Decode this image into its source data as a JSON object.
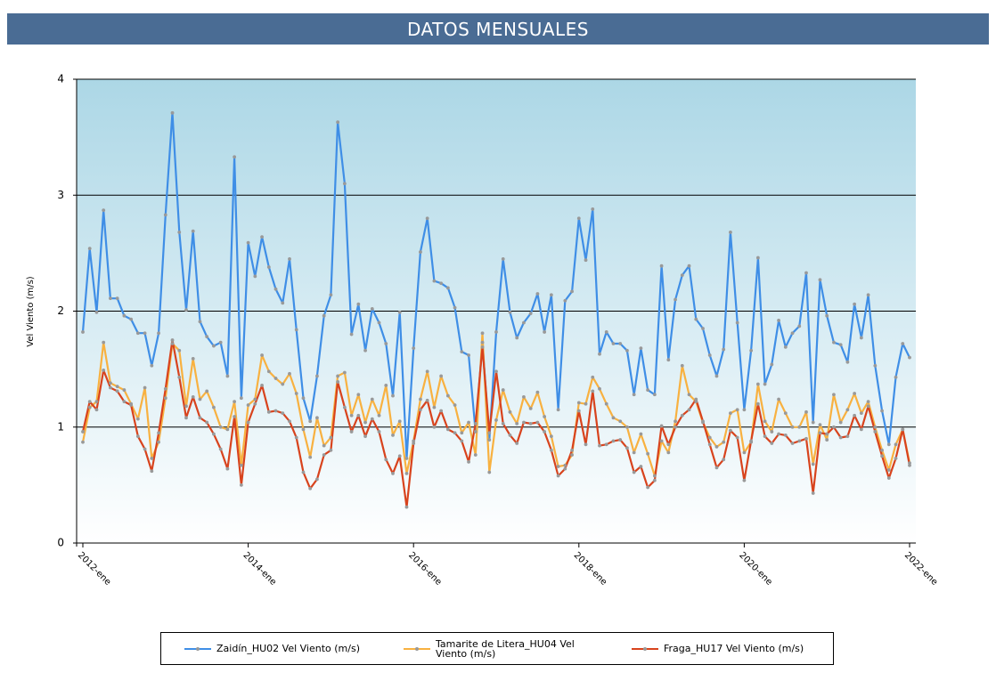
{
  "chart_data": {
    "type": "line",
    "title": "DATOS MENSUALES",
    "y_label": "Vel Viento (m/s)",
    "categories": [
      "2012-ene",
      null,
      null,
      null,
      null,
      null,
      null,
      null,
      null,
      null,
      null,
      null,
      null,
      null,
      null,
      null,
      null,
      null,
      null,
      null,
      null,
      null,
      null,
      null,
      "2014-ene",
      null,
      null,
      null,
      null,
      null,
      null,
      null,
      null,
      null,
      null,
      null,
      null,
      null,
      null,
      null,
      null,
      null,
      null,
      null,
      null,
      null,
      null,
      null,
      "2016-ene",
      null,
      null,
      null,
      null,
      null,
      null,
      null,
      null,
      null,
      null,
      null,
      null,
      null,
      null,
      null,
      null,
      null,
      null,
      null,
      null,
      null,
      null,
      null,
      "2018-ene",
      null,
      null,
      null,
      null,
      null,
      null,
      null,
      null,
      null,
      null,
      null,
      null,
      null,
      null,
      null,
      null,
      null,
      null,
      null,
      null,
      null,
      null,
      null,
      "2020-ene",
      null,
      null,
      null,
      null,
      null,
      null,
      null,
      null,
      null,
      null,
      null,
      null,
      null,
      null,
      null,
      null,
      null,
      null,
      null,
      null,
      null,
      null,
      null,
      "2022-ene"
    ],
    "series": [
      {
        "name": "Zaidín_HU02 Vel Viento (m/s)",
        "color": "#3f8ee6",
        "values": [
          1.82,
          2.54,
          1.99,
          2.87,
          2.11,
          2.11,
          1.96,
          1.93,
          1.81,
          1.81,
          1.53,
          1.81,
          2.83,
          3.71,
          2.68,
          2.01,
          2.69,
          1.91,
          1.78,
          1.7,
          1.73,
          1.44,
          3.33,
          1.25,
          2.59,
          2.3,
          2.64,
          2.38,
          2.19,
          2.07,
          2.45,
          1.84,
          1.25,
          1.05,
          1.44,
          1.96,
          2.14,
          3.63,
          3.1,
          1.8,
          2.06,
          1.66,
          2.02,
          1.9,
          1.72,
          1.27,
          1.99,
          0.73,
          1.68,
          2.51,
          2.8,
          2.26,
          2.24,
          2.2,
          2.03,
          1.65,
          1.62,
          0.96,
          1.73,
          0.89,
          1.82,
          2.45,
          1.99,
          1.77,
          1.9,
          1.98,
          2.15,
          1.82,
          2.14,
          1.15,
          2.09,
          2.17,
          2.8,
          2.44,
          2.88,
          1.63,
          1.82,
          1.72,
          1.72,
          1.66,
          1.28,
          1.68,
          1.32,
          1.28,
          2.39,
          1.58,
          2.1,
          2.31,
          2.39,
          1.93,
          1.85,
          1.62,
          1.44,
          1.67,
          2.68,
          1.9,
          1.15,
          1.66,
          2.46,
          1.37,
          1.54,
          1.92,
          1.69,
          1.81,
          1.87,
          2.33,
          1.04,
          2.27,
          1.96,
          1.73,
          1.71,
          1.56,
          2.06,
          1.77,
          2.14,
          1.53,
          1.14,
          0.85,
          1.43,
          1.72,
          1.6
        ]
      },
      {
        "name": "Tamarite de Litera_HU04 Vel Viento (m/s)",
        "color": "#f8b140",
        "values": [
          0.87,
          1.17,
          1.22,
          1.73,
          1.38,
          1.35,
          1.32,
          1.2,
          1.07,
          1.34,
          0.73,
          0.87,
          1.25,
          1.72,
          1.66,
          1.18,
          1.59,
          1.24,
          1.31,
          1.17,
          1.0,
          0.98,
          1.22,
          0.67,
          1.19,
          1.24,
          1.62,
          1.48,
          1.42,
          1.37,
          1.46,
          1.29,
          0.98,
          0.74,
          1.08,
          0.84,
          0.91,
          1.44,
          1.47,
          1.1,
          1.28,
          1.04,
          1.24,
          1.1,
          1.36,
          0.93,
          1.05,
          0.6,
          0.88,
          1.24,
          1.48,
          1.17,
          1.44,
          1.27,
          1.19,
          0.95,
          1.04,
          0.76,
          1.81,
          0.61,
          1.06,
          1.32,
          1.13,
          1.03,
          1.26,
          1.16,
          1.3,
          1.09,
          0.92,
          0.66,
          0.67,
          0.76,
          1.21,
          1.2,
          1.43,
          1.33,
          1.2,
          1.08,
          1.05,
          1.0,
          0.78,
          0.94,
          0.77,
          0.58,
          0.88,
          0.78,
          1.05,
          1.53,
          1.28,
          1.22,
          1.04,
          0.91,
          0.83,
          0.87,
          1.12,
          1.15,
          0.78,
          0.87,
          1.37,
          1.05,
          0.96,
          1.24,
          1.12,
          1.0,
          1.0,
          1.13,
          0.68,
          1.02,
          0.89,
          1.28,
          1.04,
          1.15,
          1.29,
          1.12,
          1.22,
          1.0,
          0.8,
          0.63,
          0.85,
          0.98,
          0.69
        ]
      },
      {
        "name": "Fraga_HU17 Vel Viento (m/s)",
        "color": "#d8431d",
        "values": [
          0.96,
          1.22,
          1.15,
          1.49,
          1.34,
          1.31,
          1.22,
          1.19,
          0.92,
          0.81,
          0.62,
          0.95,
          1.33,
          1.75,
          1.43,
          1.08,
          1.26,
          1.08,
          1.04,
          0.94,
          0.81,
          0.64,
          1.09,
          0.5,
          1.04,
          1.2,
          1.36,
          1.13,
          1.14,
          1.12,
          1.05,
          0.91,
          0.61,
          0.47,
          0.55,
          0.76,
          0.8,
          1.39,
          1.17,
          0.96,
          1.1,
          0.92,
          1.07,
          0.96,
          0.72,
          0.6,
          0.75,
          0.31,
          0.86,
          1.15,
          1.23,
          1.0,
          1.14,
          0.98,
          0.95,
          0.88,
          0.7,
          1.03,
          1.69,
          0.95,
          1.48,
          1.03,
          0.93,
          0.86,
          1.04,
          1.03,
          1.04,
          0.96,
          0.8,
          0.58,
          0.64,
          0.8,
          1.14,
          0.85,
          1.31,
          0.84,
          0.85,
          0.88,
          0.89,
          0.82,
          0.61,
          0.66,
          0.48,
          0.54,
          1.01,
          0.85,
          1.0,
          1.1,
          1.15,
          1.24,
          1.05,
          0.85,
          0.65,
          0.72,
          0.97,
          0.91,
          0.54,
          0.88,
          1.2,
          0.92,
          0.86,
          0.94,
          0.93,
          0.86,
          0.88,
          0.9,
          0.43,
          0.95,
          0.94,
          1.0,
          0.91,
          0.92,
          1.1,
          0.98,
          1.18,
          0.96,
          0.75,
          0.56,
          0.73,
          0.98,
          0.67
        ]
      }
    ],
    "ylim": [
      0,
      4
    ],
    "yticks": [
      0,
      1,
      2,
      3,
      4
    ],
    "grid": true,
    "legend": "bottom"
  }
}
